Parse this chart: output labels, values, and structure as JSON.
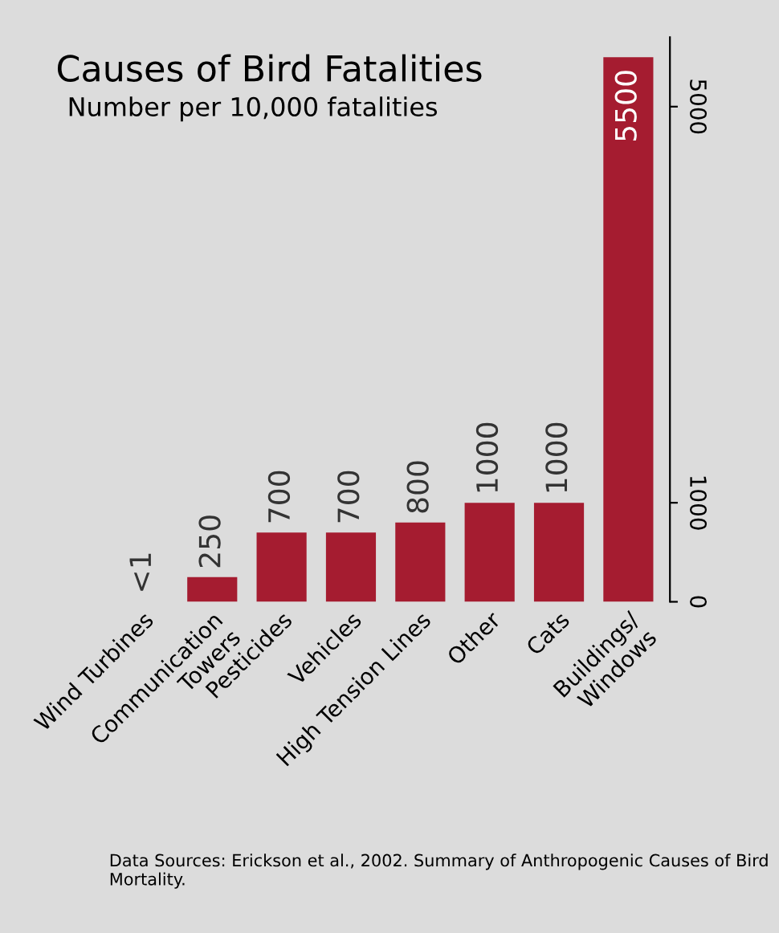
{
  "chart_data": {
    "type": "bar",
    "title": "Causes of Bird Fatalities",
    "subtitle": "Number per 10,000 fatalities",
    "categories": [
      "Wind Turbines",
      "Communication\nTowers",
      "Pesticides",
      "Vehicles",
      "High Tension Lines",
      "Other",
      "Cats",
      "Buildings/\nWindows"
    ],
    "values": [
      0.5,
      250,
      700,
      700,
      800,
      1000,
      1000,
      5500
    ],
    "value_labels": [
      "<1",
      "250",
      "700",
      "700",
      "800",
      "1000",
      "1000",
      "5500"
    ],
    "color": "#a51c30",
    "ylim": [
      0,
      5700
    ],
    "yticks": [
      0,
      1000,
      5000
    ],
    "grid": false,
    "annotations": [
      "Data Sources: Erickson et al., 2002. Summary of Anthropogenic Causes of Bird Mortality."
    ]
  }
}
